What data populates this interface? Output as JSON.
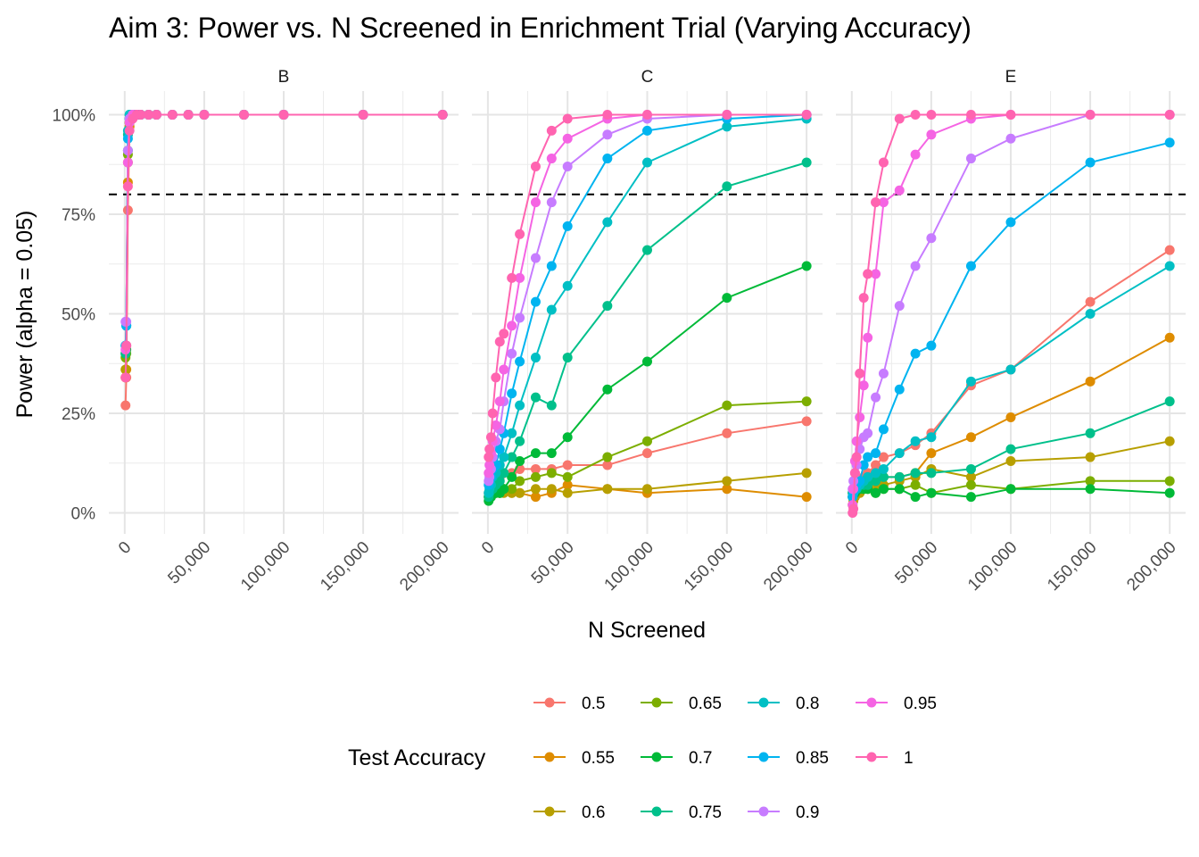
{
  "chart_data": {
    "type": "line",
    "title": "Aim 3: Power vs. N Screened in Enrichment Trial (Varying Accuracy)",
    "xlabel": "N Screened",
    "ylabel": "Power (alpha = 0.05)",
    "xlim": [
      0,
      200000
    ],
    "ylim": [
      0,
      1
    ],
    "x_ticks": [
      0,
      50000,
      100000,
      150000,
      200000
    ],
    "x_tick_labels": [
      "0",
      "50,000",
      "100,000",
      "150,000",
      "200,000"
    ],
    "y_ticks": [
      0,
      0.25,
      0.5,
      0.75,
      1.0
    ],
    "y_tick_labels": [
      "0%",
      "25%",
      "50%",
      "75%",
      "100%"
    ],
    "reference_line": {
      "y": 0.8,
      "style": "dashed"
    },
    "grid": true,
    "legend": {
      "title": "Test Accuracy",
      "position": "bottom",
      "entries": [
        {
          "label": "0.5",
          "color": "#F8766D"
        },
        {
          "label": "0.55",
          "color": "#DE8C00"
        },
        {
          "label": "0.6",
          "color": "#B79F00"
        },
        {
          "label": "0.65",
          "color": "#7CAE00"
        },
        {
          "label": "0.7",
          "color": "#00BA38"
        },
        {
          "label": "0.75",
          "color": "#00C08B"
        },
        {
          "label": "0.8",
          "color": "#00BFC4"
        },
        {
          "label": "0.85",
          "color": "#00B4F0"
        },
        {
          "label": "0.9",
          "color": "#C77CFF"
        },
        {
          "label": "0.95",
          "color": "#F564E3"
        },
        {
          "label": "1",
          "color": "#FF64B0"
        }
      ]
    },
    "x": [
      500,
      1000,
      2000,
      3000,
      5000,
      7500,
      10000,
      15000,
      20000,
      30000,
      40000,
      50000,
      75000,
      100000,
      150000,
      200000
    ],
    "panels": [
      {
        "name": "B",
        "series": [
          {
            "name": "0.5",
            "values": [
              0.27,
              0.34,
              0.76,
              0.97,
              1,
              1,
              1,
              1,
              1,
              1,
              1,
              1,
              1,
              1,
              1,
              1
            ]
          },
          {
            "name": "0.55",
            "values": [
              0.34,
              0.36,
              0.83,
              0.97,
              1,
              1,
              1,
              1,
              1,
              1,
              1,
              1,
              1,
              1,
              1,
              1
            ]
          },
          {
            "name": "0.6",
            "values": [
              0.36,
              0.42,
              0.88,
              0.98,
              1,
              1,
              1,
              1,
              1,
              1,
              1,
              1,
              1,
              1,
              1,
              1
            ]
          },
          {
            "name": "0.65",
            "values": [
              0.39,
              0.4,
              0.9,
              0.98,
              1,
              1,
              1,
              1,
              1,
              1,
              1,
              1,
              1,
              1,
              1,
              1
            ]
          },
          {
            "name": "0.7",
            "values": [
              0.4,
              0.41,
              0.91,
              0.99,
              1,
              1,
              1,
              1,
              1,
              1,
              1,
              1,
              1,
              1,
              1,
              1
            ]
          },
          {
            "name": "0.75",
            "values": [
              0.4,
              0.47,
              0.95,
              1,
              1,
              1,
              1,
              1,
              1,
              1,
              1,
              1,
              1,
              1,
              1,
              1
            ]
          },
          {
            "name": "0.8",
            "values": [
              0.42,
              0.47,
              0.96,
              1,
              1,
              1,
              1,
              1,
              1,
              1,
              1,
              1,
              1,
              1,
              1,
              1
            ]
          },
          {
            "name": "0.85",
            "values": [
              0.42,
              0.47,
              0.94,
              0.99,
              1,
              1,
              1,
              1,
              1,
              1,
              1,
              1,
              1,
              1,
              1,
              1
            ]
          },
          {
            "name": "0.9",
            "values": [
              0.48,
              0.48,
              0.91,
              0.99,
              1,
              1,
              1,
              1,
              1,
              1,
              1,
              1,
              1,
              1,
              1,
              1
            ]
          },
          {
            "name": "0.95",
            "values": [
              0.41,
              0.42,
              0.88,
              0.98,
              1,
              1,
              1,
              1,
              1,
              1,
              1,
              1,
              1,
              1,
              1,
              1
            ]
          },
          {
            "name": "1",
            "values": [
              0.34,
              0.42,
              0.82,
              0.96,
              0.99,
              1,
              1,
              1,
              1,
              1,
              1,
              1,
              1,
              1,
              1,
              1
            ]
          }
        ]
      },
      {
        "name": "C",
        "series": [
          {
            "name": "0.5",
            "values": [
              0.05,
              0.05,
              0.06,
              0.07,
              0.08,
              0.09,
              0.1,
              0.1,
              0.11,
              0.11,
              0.11,
              0.12,
              0.12,
              0.15,
              0.2,
              0.23
            ]
          },
          {
            "name": "0.55",
            "values": [
              0.04,
              0.04,
              0.05,
              0.05,
              0.06,
              0.05,
              0.06,
              0.05,
              0.05,
              0.04,
              0.05,
              0.07,
              0.06,
              0.05,
              0.06,
              0.04
            ]
          },
          {
            "name": "0.6",
            "values": [
              0.04,
              0.04,
              0.05,
              0.05,
              0.05,
              0.05,
              0.05,
              0.05,
              0.05,
              0.06,
              0.06,
              0.05,
              0.06,
              0.06,
              0.08,
              0.1
            ]
          },
          {
            "name": "0.65",
            "values": [
              0.04,
              0.04,
              0.04,
              0.05,
              0.05,
              0.05,
              0.06,
              0.06,
              0.08,
              0.09,
              0.1,
              0.09,
              0.14,
              0.18,
              0.27,
              0.28
            ]
          },
          {
            "name": "0.7",
            "values": [
              0.03,
              0.04,
              0.04,
              0.05,
              0.05,
              0.05,
              0.06,
              0.09,
              0.13,
              0.15,
              0.15,
              0.19,
              0.31,
              0.38,
              0.54,
              0.62
            ]
          },
          {
            "name": "0.75",
            "values": [
              0.04,
              0.05,
              0.06,
              0.06,
              0.07,
              0.08,
              0.1,
              0.14,
              0.18,
              0.29,
              0.27,
              0.39,
              0.52,
              0.66,
              0.82,
              0.88
            ]
          },
          {
            "name": "0.8",
            "values": [
              0.05,
              0.06,
              0.07,
              0.09,
              0.1,
              0.12,
              0.14,
              0.2,
              0.27,
              0.39,
              0.51,
              0.57,
              0.73,
              0.88,
              0.97,
              0.99
            ]
          },
          {
            "name": "0.85",
            "values": [
              0.07,
              0.08,
              0.09,
              0.11,
              0.12,
              0.16,
              0.2,
              0.3,
              0.38,
              0.53,
              0.62,
              0.72,
              0.89,
              0.96,
              0.99,
              1
            ]
          },
          {
            "name": "0.9",
            "values": [
              0.08,
              0.09,
              0.11,
              0.14,
              0.18,
              0.21,
              0.28,
              0.4,
              0.49,
              0.64,
              0.78,
              0.87,
              0.95,
              0.99,
              1,
              1
            ]
          },
          {
            "name": "0.95",
            "values": [
              0.1,
              0.12,
              0.15,
              0.18,
              0.22,
              0.28,
              0.36,
              0.47,
              0.59,
              0.78,
              0.89,
              0.94,
              0.99,
              1,
              1,
              1
            ]
          },
          {
            "name": "1",
            "values": [
              0.14,
              0.16,
              0.19,
              0.25,
              0.34,
              0.43,
              0.45,
              0.59,
              0.7,
              0.87,
              0.96,
              0.99,
              1,
              1,
              1,
              1
            ]
          }
        ]
      },
      {
        "name": "E",
        "series": [
          {
            "name": "0.5",
            "values": [
              0.04,
              0.05,
              0.06,
              0.07,
              0.08,
              0.09,
              0.1,
              0.12,
              0.14,
              0.15,
              0.17,
              0.2,
              0.32,
              0.36,
              0.53,
              0.66
            ]
          },
          {
            "name": "0.55",
            "values": [
              0.04,
              0.05,
              0.06,
              0.06,
              0.07,
              0.07,
              0.08,
              0.08,
              0.09,
              0.09,
              0.1,
              0.15,
              0.19,
              0.24,
              0.33,
              0.44
            ]
          },
          {
            "name": "0.6",
            "values": [
              0.02,
              0.03,
              0.04,
              0.05,
              0.05,
              0.06,
              0.06,
              0.06,
              0.07,
              0.08,
              0.09,
              0.11,
              0.09,
              0.13,
              0.14,
              0.18
            ]
          },
          {
            "name": "0.65",
            "values": [
              0.05,
              0.05,
              0.06,
              0.06,
              0.06,
              0.06,
              0.06,
              0.05,
              0.06,
              0.06,
              0.07,
              0.05,
              0.07,
              0.06,
              0.08,
              0.08
            ]
          },
          {
            "name": "0.7",
            "values": [
              0.04,
              0.05,
              0.05,
              0.06,
              0.06,
              0.06,
              0.06,
              0.05,
              0.06,
              0.06,
              0.04,
              0.05,
              0.04,
              0.06,
              0.06,
              0.05
            ]
          },
          {
            "name": "0.75",
            "values": [
              0.05,
              0.05,
              0.06,
              0.06,
              0.07,
              0.07,
              0.07,
              0.08,
              0.09,
              0.09,
              0.1,
              0.1,
              0.11,
              0.16,
              0.2,
              0.28
            ]
          },
          {
            "name": "0.8",
            "values": [
              0.04,
              0.05,
              0.06,
              0.06,
              0.07,
              0.08,
              0.09,
              0.1,
              0.11,
              0.15,
              0.18,
              0.19,
              0.33,
              0.36,
              0.5,
              0.62
            ]
          },
          {
            "name": "0.85",
            "values": [
              0.04,
              0.05,
              0.06,
              0.07,
              0.08,
              0.12,
              0.14,
              0.15,
              0.21,
              0.31,
              0.4,
              0.42,
              0.62,
              0.73,
              0.88,
              0.93
            ]
          },
          {
            "name": "0.9",
            "values": [
              0.06,
              0.08,
              0.1,
              0.12,
              0.16,
              0.19,
              0.2,
              0.29,
              0.35,
              0.52,
              0.62,
              0.69,
              0.89,
              0.94,
              1,
              1
            ]
          },
          {
            "name": "0.95",
            "values": [
              0.02,
              0.06,
              0.13,
              0.18,
              0.24,
              0.32,
              0.44,
              0.6,
              0.78,
              0.81,
              0.9,
              0.95,
              0.99,
              1,
              1,
              1
            ]
          },
          {
            "name": "1",
            "values": [
              0.0,
              0.01,
              0.1,
              0.14,
              0.35,
              0.54,
              0.6,
              0.78,
              0.88,
              0.99,
              1,
              1,
              1,
              1,
              1,
              1
            ]
          }
        ]
      }
    ]
  }
}
